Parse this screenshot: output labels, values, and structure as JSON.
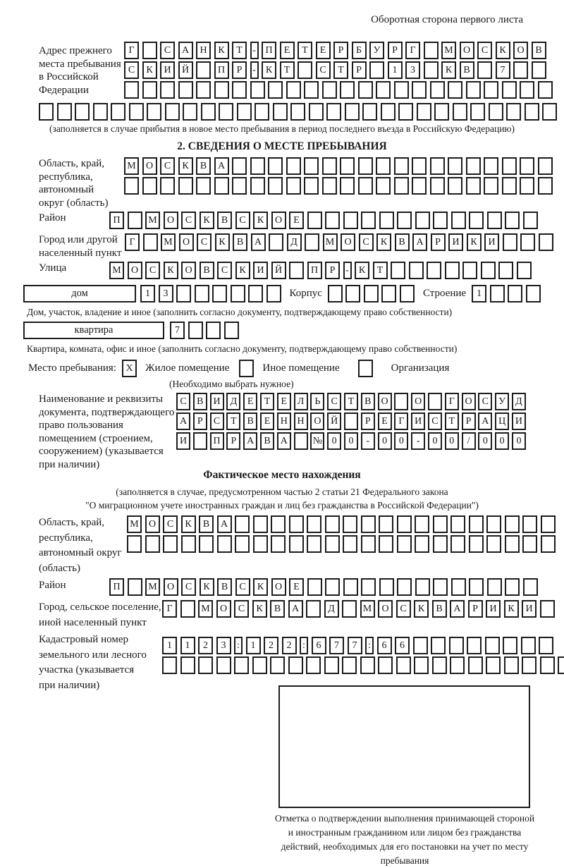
{
  "colors": {
    "ink": "#1a1a1a",
    "paper": "#ffffff"
  },
  "page_note": "Оборотная сторона первого листа",
  "prev_address": {
    "label": "Адрес прежнего\nместа пребывания\nв Российской\nФедерации",
    "row1": "Г САНКТ-ПЕТЕРБУРГ МОСКОВ",
    "row2": "СКИЙ ПР-КТ СТР 13 КВ 7  ",
    "row3": "                        ",
    "row4": "                             ",
    "note": "(заполняется в случае прибытия в новое место пребывания в период последнего въезда в Российскую Федерацию)"
  },
  "section2": {
    "title": "2. СВЕДЕНИЯ О МЕСТЕ ПРЕБЫВАНИЯ",
    "oblast": {
      "label": "Область, край,\nреспублика,\nавтономный\nокруг (область)",
      "row1": "МОСКВА                  ",
      "row2": "                        "
    },
    "raion": {
      "label": "Район",
      "row": "П МОСКВСКОЕ             "
    },
    "gorod": {
      "label": "Город или другой\nнаселенный пункт",
      "row": "Г МОСКВА Д МОСКВАРИКИ   "
    },
    "ulitsa": {
      "label": "Улица",
      "row": "МОСКОВСКИЙ ПР-КТ        "
    },
    "dom": {
      "box_label": "дом",
      "cells": "13      ",
      "korpus_label": "Корпус",
      "korpus_cells": "     ",
      "stroenie_label": "Строение",
      "stroenie_cells": "1   ",
      "note": "Дом, участок, владение и иное (заполнить согласно документу, подтверждающему право собственности)"
    },
    "kvartira": {
      "box_label": "квартира",
      "cells": "7   ",
      "note": "Квартира, комната, офис и иное (заполнить согласно документу, подтверждающему право собственности)"
    },
    "mesto": {
      "label": "Место пребывания:",
      "opt1": {
        "mark": "X",
        "label": "Жилое помещение"
      },
      "opt2": {
        "mark": "",
        "label": "Иное помещение"
      },
      "opt3": {
        "mark": "",
        "label": "Организация"
      },
      "note": "(Необходимо выбрать нужное)"
    },
    "doc": {
      "label": "Наименование и реквизиты\nдокумента, подтверждающего\nправо пользования\nпомещением (строением,\nсооружением) (указывается\nпри наличии)",
      "row1": "СВИДЕТЕЛЬСТВО О ГОСУД",
      "row2": "АРСТВЕННОЙ РЕГИСТРАЦИ",
      "row3": "И ПРАВА №00-00-00/000"
    }
  },
  "fact": {
    "title": "Фактическое место нахождения",
    "note1": "(заполняется в случае, предусмотренном частью 2 статьи 21 Федерального закона",
    "note2": "\"О миграционном учете иностранных граждан и лиц без гражданства в Российской Федерации\")",
    "oblast": {
      "label": "Область, край,\nреспублика,\nавтономный округ\n(область)",
      "row1": "МОСКВА                  ",
      "row2": "                        "
    },
    "raion": {
      "label": "Район",
      "row": "П МОСКВСКОЕ             "
    },
    "gorod": {
      "label": "Город, сельское поселение,\nиной населенный пункт",
      "row": "Г МОСКВА Д МОСКВАРИКИ "
    },
    "kadastr": {
      "label": "Кадастровый номер\nземельного или лесного\nучастка (указывается\nпри наличии)",
      "row1": "1123:122:677:66        ",
      "row2": "                       "
    },
    "stamp_note": "Отметка о подтверждении выполнения принимающей стороной и иностранным гражданином или лицом без гражданства действий, необходимых для его постановки на учет по месту пребывания"
  }
}
